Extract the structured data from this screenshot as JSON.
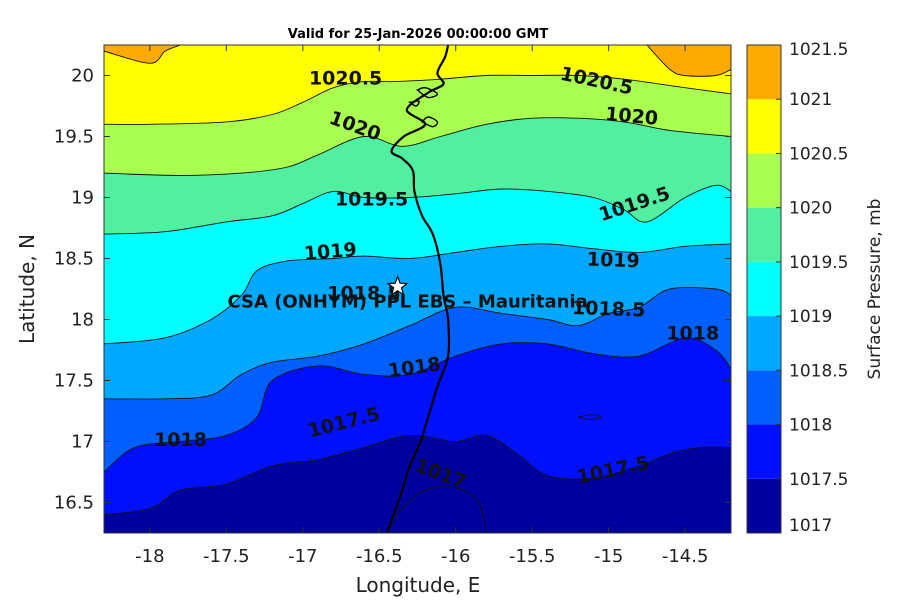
{
  "chart_data": {
    "type": "contour",
    "title": "Valid for 25-Jan-2026 00:00:00 GMT",
    "xlabel": "Longitude, E",
    "ylabel": "Latitude, N",
    "xlim": [
      -18.3,
      -14.2
    ],
    "ylim": [
      16.25,
      20.25
    ],
    "x_ticks": [
      -18,
      -17.5,
      -17,
      -16.5,
      -16,
      -15.5,
      -15,
      -14.5
    ],
    "x_tick_labels": [
      "-18",
      "-17.5",
      "-17",
      "-16.5",
      "-16",
      "-15.5",
      "-15",
      "-14.5"
    ],
    "y_ticks": [
      16.5,
      17,
      17.5,
      18,
      18.5,
      19,
      19.5,
      20
    ],
    "y_tick_labels": [
      "16.5",
      "17",
      "17.5",
      "18",
      "18.5",
      "19",
      "19.5",
      "20"
    ],
    "colorbar": {
      "label": "Surface Pressure, mb",
      "range": [
        1017,
        1021.5
      ],
      "tick_values": [
        1017,
        1017.5,
        1018,
        1018.5,
        1019,
        1019.5,
        1020,
        1020.5,
        1021,
        1021.5
      ],
      "tick_labels": [
        "1017",
        "1017.5",
        "1018",
        "1018.5",
        "1019",
        "1019.5",
        "1020",
        "1020.5",
        "1021",
        "1021.5"
      ],
      "colors": [
        "#00009f",
        "#0010ff",
        "#0060ff",
        "#00a8ff",
        "#00ffff",
        "#50f0a0",
        "#a8ff50",
        "#ffff00",
        "#ffaa00",
        "#ff5500"
      ]
    },
    "contour_levels": [
      {
        "value": 1021,
        "points": [
          [
            -18.3,
            20.2
          ],
          [
            -18.0,
            20.1
          ],
          [
            -17.9,
            20.2
          ],
          [
            -17.8,
            20.25
          ]
        ]
      },
      {
        "value": 1021,
        "points": [
          [
            -14.75,
            20.25
          ],
          [
            -14.6,
            20.05
          ],
          [
            -14.5,
            20.0
          ],
          [
            -14.3,
            20.0
          ],
          [
            -14.2,
            20.05
          ]
        ]
      },
      {
        "value": 1020.5,
        "points": [
          [
            -18.3,
            19.6
          ],
          [
            -18.0,
            19.6
          ],
          [
            -17.5,
            19.62
          ],
          [
            -17.2,
            19.68
          ],
          [
            -17.0,
            19.78
          ],
          [
            -16.8,
            19.9
          ],
          [
            -16.6,
            19.95
          ],
          [
            -16.4,
            19.95
          ],
          [
            -16.1,
            19.97
          ],
          [
            -15.8,
            20.0
          ],
          [
            -15.5,
            20.0
          ],
          [
            -15.2,
            20.0
          ],
          [
            -14.9,
            19.97
          ],
          [
            -14.5,
            19.9
          ],
          [
            -14.2,
            19.85
          ]
        ]
      },
      {
        "value": 1020,
        "points": [
          [
            -18.3,
            19.2
          ],
          [
            -17.8,
            19.18
          ],
          [
            -17.4,
            19.2
          ],
          [
            -17.1,
            19.25
          ],
          [
            -16.9,
            19.35
          ],
          [
            -16.6,
            19.5
          ],
          [
            -16.35,
            19.42
          ],
          [
            -16.1,
            19.5
          ],
          [
            -15.8,
            19.6
          ],
          [
            -15.5,
            19.65
          ],
          [
            -15.2,
            19.65
          ],
          [
            -14.9,
            19.62
          ],
          [
            -14.6,
            19.55
          ],
          [
            -14.2,
            19.5
          ]
        ]
      },
      {
        "value": 1019.5,
        "points": [
          [
            -18.3,
            18.7
          ],
          [
            -17.9,
            18.72
          ],
          [
            -17.5,
            18.8
          ],
          [
            -17.2,
            18.85
          ],
          [
            -17.0,
            18.95
          ],
          [
            -16.8,
            19.05
          ],
          [
            -16.6,
            19.0
          ],
          [
            -16.3,
            19.0
          ],
          [
            -16.0,
            19.03
          ],
          [
            -15.7,
            19.07
          ],
          [
            -15.4,
            19.05
          ],
          [
            -15.1,
            19.0
          ],
          [
            -14.9,
            18.9
          ],
          [
            -14.75,
            18.8
          ],
          [
            -14.5,
            19.0
          ],
          [
            -14.3,
            19.1
          ],
          [
            -14.2,
            19.05
          ]
        ]
      },
      {
        "value": 1019,
        "points": [
          [
            -18.3,
            17.8
          ],
          [
            -17.9,
            17.85
          ],
          [
            -17.6,
            18.0
          ],
          [
            -17.4,
            18.2
          ],
          [
            -17.3,
            18.4
          ],
          [
            -17.1,
            18.48
          ],
          [
            -16.8,
            18.5
          ],
          [
            -16.6,
            18.52
          ],
          [
            -16.3,
            18.5
          ],
          [
            -16.0,
            18.55
          ],
          [
            -15.7,
            18.6
          ],
          [
            -15.4,
            18.62
          ],
          [
            -15.1,
            18.58
          ],
          [
            -14.8,
            18.55
          ],
          [
            -14.5,
            18.6
          ],
          [
            -14.2,
            18.62
          ]
        ]
      },
      {
        "value": 1018.5,
        "points": [
          [
            -18.3,
            17.35
          ],
          [
            -17.9,
            17.35
          ],
          [
            -17.6,
            17.38
          ],
          [
            -17.4,
            17.55
          ],
          [
            -17.2,
            17.65
          ],
          [
            -16.9,
            17.7
          ],
          [
            -16.6,
            17.8
          ],
          [
            -16.3,
            17.95
          ],
          [
            -16.0,
            18.1
          ],
          [
            -15.7,
            18.05
          ],
          [
            -15.4,
            18.0
          ],
          [
            -15.2,
            17.95
          ],
          [
            -15.0,
            18.05
          ],
          [
            -14.8,
            18.1
          ],
          [
            -14.6,
            18.25
          ],
          [
            -14.3,
            18.25
          ],
          [
            -14.2,
            18.2
          ]
        ]
      },
      {
        "value": 1018,
        "points": [
          [
            -18.3,
            16.75
          ],
          [
            -18.1,
            16.95
          ],
          [
            -17.8,
            17.0
          ],
          [
            -17.5,
            17.05
          ],
          [
            -17.3,
            17.2
          ],
          [
            -17.2,
            17.5
          ],
          [
            -16.9,
            17.62
          ],
          [
            -16.6,
            17.55
          ],
          [
            -16.3,
            17.55
          ],
          [
            -16.0,
            17.7
          ],
          [
            -15.7,
            17.8
          ],
          [
            -15.4,
            17.8
          ],
          [
            -15.1,
            17.72
          ],
          [
            -14.8,
            17.7
          ],
          [
            -14.5,
            17.85
          ],
          [
            -14.3,
            17.75
          ],
          [
            -14.2,
            17.6
          ]
        ]
      },
      {
        "value": 1018,
        "points": [
          [
            -15.2,
            17.2
          ],
          [
            -15.12,
            17.22
          ],
          [
            -15.05,
            17.2
          ],
          [
            -15.12,
            17.18
          ],
          [
            -15.2,
            17.2
          ]
        ]
      },
      {
        "value": 1017.5,
        "points": [
          [
            -18.3,
            16.4
          ],
          [
            -18.0,
            16.45
          ],
          [
            -17.8,
            16.6
          ],
          [
            -17.5,
            16.65
          ],
          [
            -17.2,
            16.8
          ],
          [
            -16.9,
            16.85
          ],
          [
            -16.6,
            16.95
          ],
          [
            -16.3,
            17.05
          ],
          [
            -16.0,
            17.0
          ],
          [
            -15.8,
            17.05
          ],
          [
            -15.6,
            16.9
          ],
          [
            -15.4,
            16.72
          ],
          [
            -15.1,
            16.7
          ],
          [
            -14.8,
            16.8
          ],
          [
            -14.6,
            16.9
          ],
          [
            -14.4,
            16.95
          ],
          [
            -14.2,
            16.95
          ]
        ]
      },
      {
        "value": 1017,
        "points": [
          [
            -16.45,
            16.25
          ],
          [
            -16.35,
            16.45
          ],
          [
            -16.2,
            16.6
          ],
          [
            -16.0,
            16.62
          ],
          [
            -15.85,
            16.5
          ],
          [
            -15.8,
            16.25
          ]
        ]
      }
    ],
    "contour_labels": [
      {
        "text": "1020.5",
        "x": -16.72,
        "y": 19.97,
        "angle": 0
      },
      {
        "text": "1020.5",
        "x": -15.08,
        "y": 19.95,
        "angle": 12
      },
      {
        "text": "1020",
        "x": -16.66,
        "y": 19.58,
        "angle": 20
      },
      {
        "text": "1020",
        "x": -14.85,
        "y": 19.66,
        "angle": 5
      },
      {
        "text": "1019.5",
        "x": -16.55,
        "y": 18.98,
        "angle": 0
      },
      {
        "text": "1019.5",
        "x": -14.83,
        "y": 18.94,
        "angle": -18
      },
      {
        "text": "1019",
        "x": -16.82,
        "y": 18.55,
        "angle": -5
      },
      {
        "text": "1019",
        "x": -14.97,
        "y": 18.48,
        "angle": 2
      },
      {
        "text": "1018.5",
        "x": -16.6,
        "y": 18.21,
        "angle": 0
      },
      {
        "text": "1018.5",
        "x": -15.0,
        "y": 18.08,
        "angle": 2
      },
      {
        "text": "1018",
        "x": -16.27,
        "y": 17.6,
        "angle": -8
      },
      {
        "text": "1018",
        "x": -14.45,
        "y": 17.88,
        "angle": 0
      },
      {
        "text": "1018",
        "x": -17.8,
        "y": 17.01,
        "angle": 0
      },
      {
        "text": "1017.5",
        "x": -16.73,
        "y": 17.15,
        "angle": -14
      },
      {
        "text": "1017.5",
        "x": -14.97,
        "y": 16.76,
        "angle": -12
      },
      {
        "text": "1017",
        "x": -16.1,
        "y": 16.73,
        "angle": 20
      }
    ],
    "coastline": [
      [
        -16.05,
        20.25
      ],
      [
        -16.07,
        20.15
      ],
      [
        -16.12,
        20.02
      ],
      [
        -16.08,
        19.93
      ],
      [
        -16.18,
        19.86
      ],
      [
        -16.32,
        19.72
      ],
      [
        -16.2,
        19.6
      ],
      [
        -16.34,
        19.5
      ],
      [
        -16.42,
        19.38
      ],
      [
        -16.35,
        19.32
      ],
      [
        -16.28,
        19.22
      ],
      [
        -16.27,
        19.05
      ],
      [
        -16.22,
        18.85
      ],
      [
        -16.15,
        18.7
      ],
      [
        -16.1,
        18.45
      ],
      [
        -16.08,
        18.2
      ],
      [
        -16.05,
        18.0
      ],
      [
        -16.05,
        17.7
      ],
      [
        -16.12,
        17.45
      ],
      [
        -16.18,
        17.2
      ],
      [
        -16.23,
        17.0
      ],
      [
        -16.3,
        16.8
      ],
      [
        -16.35,
        16.6
      ],
      [
        -16.42,
        16.35
      ],
      [
        -16.45,
        16.25
      ]
    ],
    "site": {
      "label": "CSA (ONHYM) PPL EBS  – Mauritania",
      "lon": -16.38,
      "lat": 18.27
    }
  }
}
